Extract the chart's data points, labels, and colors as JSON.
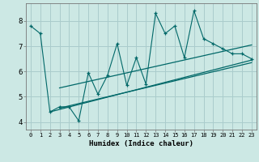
{
  "title": "",
  "xlabel": "Humidex (Indice chaleur)",
  "bg_color": "#cce8e4",
  "grid_color": "#aacccc",
  "line_color": "#006868",
  "xlim": [
    -0.5,
    23.5
  ],
  "ylim": [
    3.7,
    8.7
  ],
  "yticks": [
    4,
    5,
    6,
    7,
    8
  ],
  "xticks": [
    0,
    1,
    2,
    3,
    4,
    5,
    6,
    7,
    8,
    9,
    10,
    11,
    12,
    13,
    14,
    15,
    16,
    17,
    18,
    19,
    20,
    21,
    22,
    23
  ],
  "series1_x": [
    0,
    1,
    2,
    3,
    4,
    5,
    6,
    7,
    8,
    9,
    10,
    11,
    12,
    13,
    14,
    15,
    16,
    17,
    18,
    19,
    20,
    21,
    22,
    23
  ],
  "series1_y": [
    7.8,
    7.5,
    4.4,
    4.6,
    4.6,
    4.05,
    5.95,
    5.1,
    5.85,
    7.1,
    5.45,
    6.55,
    5.5,
    8.3,
    7.5,
    7.8,
    6.55,
    8.4,
    7.3,
    7.1,
    6.9,
    6.7,
    6.7,
    6.5
  ],
  "trend1_x": [
    2,
    23
  ],
  "trend1_y": [
    4.4,
    6.45
  ],
  "trend2_x": [
    3,
    23
  ],
  "trend2_y": [
    4.55,
    6.35
  ],
  "trend3_x": [
    3,
    23
  ],
  "trend3_y": [
    5.35,
    7.05
  ]
}
